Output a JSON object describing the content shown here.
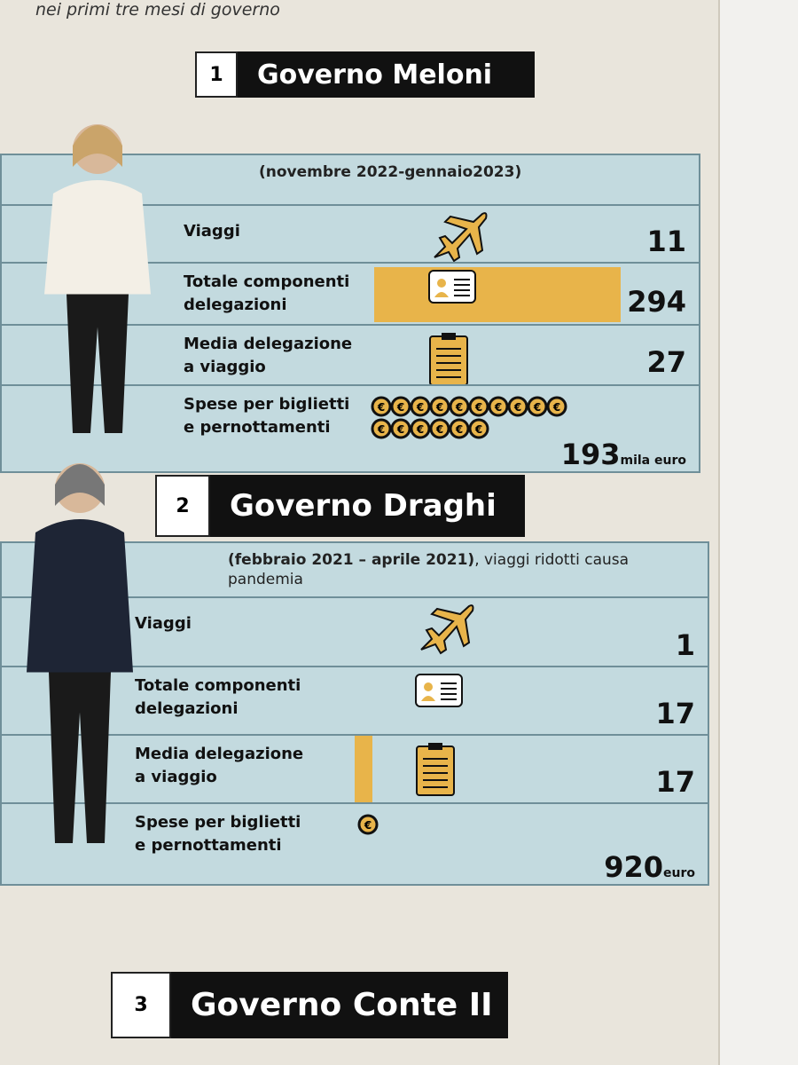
{
  "header": {
    "subtitle": "nei primi tre mesi di governo"
  },
  "sections": [
    {
      "number": 1,
      "title": "Governo Meloni",
      "period": "(novembre 2022-gennaio2023)",
      "rows": [
        {
          "label": "Viaggi",
          "value": 11
        },
        {
          "label": "Totale componenti\ndelegazioni",
          "value": 294
        },
        {
          "label": "Media delegazione\na viaggio",
          "value": 27
        },
        {
          "label": "Spese per biglietti\ne pernottamenti",
          "value": 193,
          "unit": "mila euro"
        }
      ]
    },
    {
      "number": 2,
      "title": "Governo Draghi",
      "period": "(febbraio 2021 – aprile 2021)",
      "note": ", viaggi ridotti causa pandemia",
      "rows": [
        {
          "label": "Viaggi",
          "value": 1
        },
        {
          "label": "Totale componenti\ndelegazioni",
          "value": 17
        },
        {
          "label": "Media delegazione\na viaggio",
          "value": 17
        },
        {
          "label": "Spese per biglietti\ne pernottamenti",
          "value": 920,
          "unit": "euro"
        }
      ]
    },
    {
      "number": 3,
      "title": "Governo Conte II"
    }
  ]
}
